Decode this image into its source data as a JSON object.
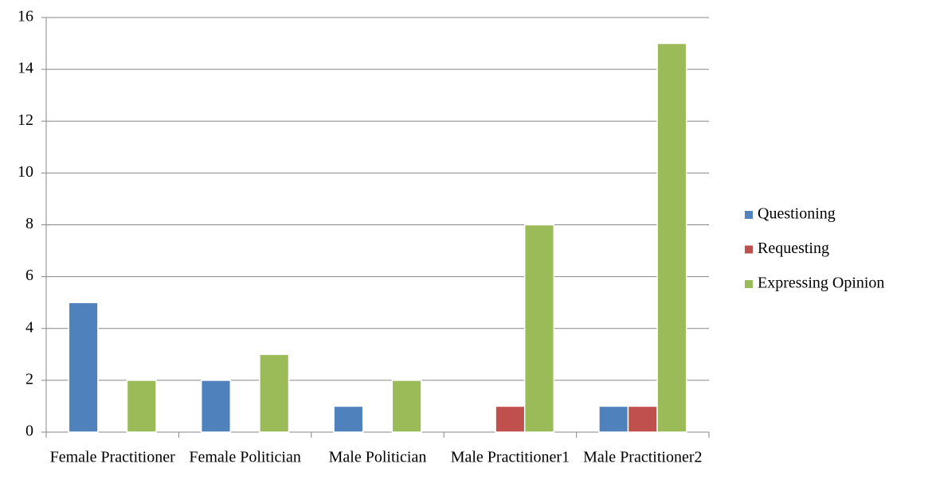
{
  "chart_data": {
    "type": "bar",
    "categories": [
      "Female Practitioner",
      "Female Politician",
      "Male Politician",
      "Male Practitioner1",
      "Male Practitioner2"
    ],
    "series": [
      {
        "name": "Questioning",
        "color": "#4f81bd",
        "values": [
          5,
          2,
          1,
          0,
          1
        ]
      },
      {
        "name": "Requesting",
        "color": "#c0504d",
        "values": [
          0,
          0,
          0,
          1,
          1
        ]
      },
      {
        "name": "Expressing Opinion",
        "color": "#9bbb59",
        "values": [
          2,
          3,
          2,
          8,
          15
        ]
      }
    ],
    "ylim": [
      0,
      16
    ],
    "yticks": [
      0,
      2,
      4,
      6,
      8,
      10,
      12,
      14,
      16
    ],
    "grid": true,
    "legend": "right"
  }
}
